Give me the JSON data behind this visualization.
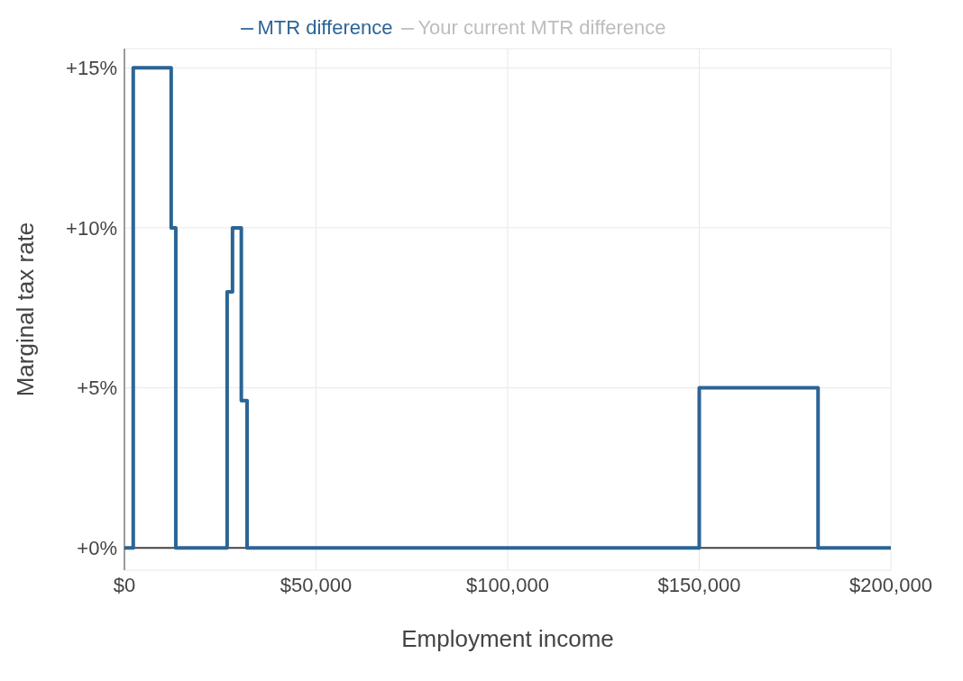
{
  "chart_data": {
    "type": "step",
    "xlabel": "Employment income",
    "ylabel": "Marginal tax rate",
    "x": [
      0,
      2300,
      12200,
      13400,
      26800,
      28200,
      30500,
      32000,
      150000,
      181000,
      200000
    ],
    "series": [
      {
        "name": "MTR difference",
        "color": "#2c6496",
        "values": [
          0,
          15,
          10,
          0,
          8,
          10,
          4.6,
          0,
          5,
          0,
          0
        ]
      },
      {
        "name": "Your current MTR difference",
        "color": "#bdbdbd",
        "values": [
          null,
          null,
          null,
          null,
          null,
          null,
          null,
          null,
          null,
          null,
          null
        ]
      }
    ],
    "xlim": [
      0,
      200000
    ],
    "ylim": [
      -0.7,
      15.6
    ],
    "xticks": [
      {
        "value": 0,
        "label": "$0"
      },
      {
        "value": 50000,
        "label": "$50,000"
      },
      {
        "value": 100000,
        "label": "$100,000"
      },
      {
        "value": 150000,
        "label": "$150,000"
      },
      {
        "value": 200000,
        "label": "$200,000"
      }
    ],
    "yticks": [
      {
        "value": 0,
        "label": "+0%"
      },
      {
        "value": 5,
        "label": "+5%"
      },
      {
        "value": 10,
        "label": "+10%"
      },
      {
        "value": 15,
        "label": "+15%"
      }
    ],
    "ref_lines": [
      {
        "axis": "y",
        "value": 0,
        "color": "#444444"
      }
    ],
    "grid": true,
    "legend": "top",
    "line_style": "solid",
    "marker": "none"
  }
}
